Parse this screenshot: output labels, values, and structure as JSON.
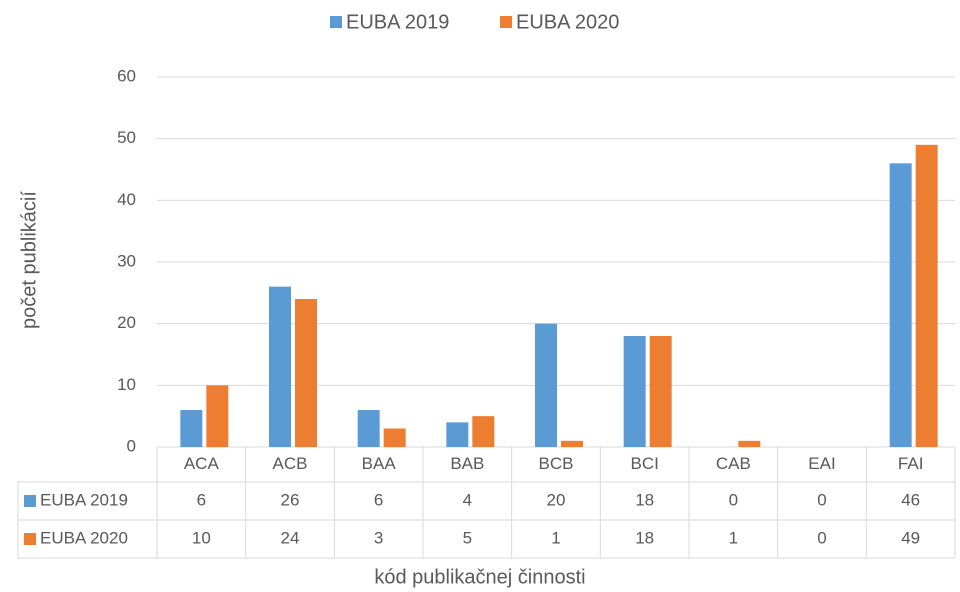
{
  "chart_data": {
    "type": "bar",
    "categories": [
      "ACA",
      "ACB",
      "BAA",
      "BAB",
      "BCB",
      "BCI",
      "CAB",
      "EAI",
      "FAI"
    ],
    "series": [
      {
        "name": "EUBA 2019",
        "color": "#5b9bd5",
        "values": [
          6,
          26,
          6,
          4,
          20,
          18,
          0,
          0,
          46
        ]
      },
      {
        "name": "EUBA 2020",
        "color": "#ed7d31",
        "values": [
          10,
          24,
          3,
          5,
          1,
          18,
          1,
          0,
          49
        ]
      }
    ],
    "ylim": [
      0,
      60
    ],
    "yticks": [
      0,
      10,
      20,
      30,
      40,
      50,
      60
    ],
    "grid": true,
    "legend": "top",
    "ylabel": "počet publikácií",
    "xlabel": "kód publikačnej činnosti"
  }
}
